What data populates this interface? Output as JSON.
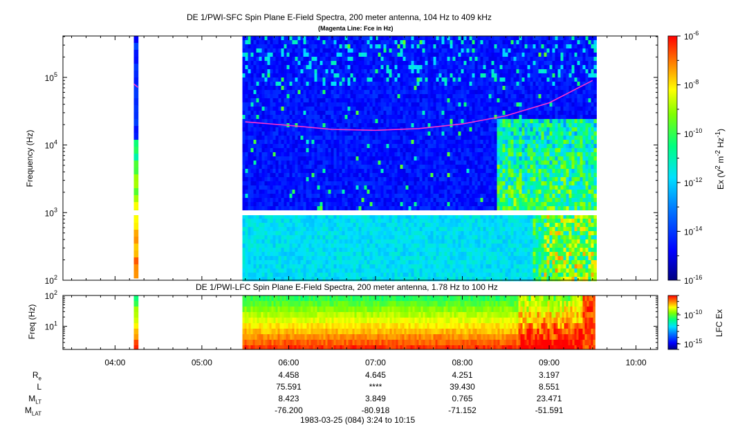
{
  "top_panel": {
    "title": "DE 1/PWI-SFC  Spin Plane E-Field Spectra, 200 meter antenna, 104 Hz to 409 kHz",
    "subtitle": "(Magenta Line: Fce in Hz)",
    "ylabel": "Frequency (Hz)",
    "colorbar_label_html": "Ex (V<sup>2</sup> m<sup>-2</sup> Hz<sup>-1</sup>)",
    "colorbar_ticks": [
      "10-6",
      "10-8",
      "10-10",
      "10-12",
      "10-14",
      "10-16"
    ]
  },
  "bottom_panel": {
    "title": "DE 1/PWI-LFC  Spin Plane E-Field Spectra, 200 meter antenna, 1.78 Hz to 100 Hz",
    "ylabel": "Freq (Hz)",
    "colorbar_label": "LFC Ex",
    "colorbar_ticks": [
      "10-10",
      "10-15"
    ]
  },
  "ephemeris": {
    "labels": [
      "Re",
      "L",
      "MLT",
      "MLAT"
    ],
    "columns": [
      {
        "time": "06:00",
        "values": [
          "4.458",
          "75.591",
          "8.423",
          "-76.200"
        ]
      },
      {
        "time": "07:00",
        "values": [
          "4.645",
          "****",
          "3.849",
          "-80.918"
        ]
      },
      {
        "time": "08:00",
        "values": [
          "4.251",
          "39.430",
          "0.765",
          "-71.152"
        ]
      },
      {
        "time": "09:00",
        "values": [
          "3.197",
          "8.551",
          "23.471",
          "-51.591"
        ]
      }
    ],
    "footer": "1983-03-25 (084) 3:24 to 10:15"
  },
  "chart_data": [
    {
      "type": "heatmap",
      "title": "DE 1/PWI-SFC  Spin Plane E-Field Spectra, 200 meter antenna, 104 Hz to 409 kHz",
      "subtitle": "(Magenta Line: Fce in Hz)",
      "xlabel": "",
      "ylabel": "Frequency (Hz)",
      "x_ticks": [
        "04:00",
        "05:00",
        "06:00",
        "07:00",
        "08:00",
        "09:00",
        "10:00"
      ],
      "xlim": [
        "03:24",
        "10:15"
      ],
      "y_scale": "log",
      "ylim": [
        100,
        409000
      ],
      "y_ticks": [
        "10^2",
        "10^3",
        "10^4",
        "10^5"
      ],
      "color_scale": "log",
      "clim": [
        1e-16,
        1e-06
      ],
      "colorbar_label": "Ex (V^2 m^-2 Hz^-1)",
      "data_intervals": [
        [
          "04:13",
          "04:16"
        ],
        [
          "05:28",
          "09:32"
        ]
      ],
      "gap_frequency_band_hz": [
        930,
        1050
      ],
      "fce_line": {
        "name": "Fce",
        "color": "#ff33cc",
        "points": [
          {
            "t": "04:13",
            "f": 80000
          },
          {
            "t": "05:30",
            "f": 22000
          },
          {
            "t": "06:00",
            "f": 19500
          },
          {
            "t": "06:30",
            "f": 17000
          },
          {
            "t": "07:00",
            "f": 16500
          },
          {
            "t": "07:30",
            "f": 17500
          },
          {
            "t": "08:00",
            "f": 20500
          },
          {
            "t": "08:30",
            "f": 27000
          },
          {
            "t": "09:00",
            "f": 42000
          },
          {
            "t": "09:30",
            "f": 90000
          }
        ]
      }
    },
    {
      "type": "heatmap",
      "title": "DE 1/PWI-LFC  Spin Plane E-Field Spectra, 200 meter antenna, 1.78 Hz to 100 Hz",
      "xlabel": "",
      "ylabel": "Freq (Hz)",
      "y_scale": "log",
      "ylim": [
        1.78,
        100
      ],
      "y_ticks": [
        "10^1",
        "10^2"
      ],
      "color_scale": "log",
      "clim": [
        1e-17,
        1e-08
      ],
      "colorbar_label": "LFC Ex",
      "data_intervals": [
        [
          "04:13",
          "04:16"
        ],
        [
          "05:28",
          "09:32"
        ]
      ]
    }
  ],
  "colors": {
    "fce_line": "#ff33cc",
    "colormap": [
      "#000080",
      "#0000ff",
      "#0080ff",
      "#00e0ff",
      "#00ff80",
      "#80ff00",
      "#ffff00",
      "#ff8000",
      "#ff0000"
    ]
  }
}
